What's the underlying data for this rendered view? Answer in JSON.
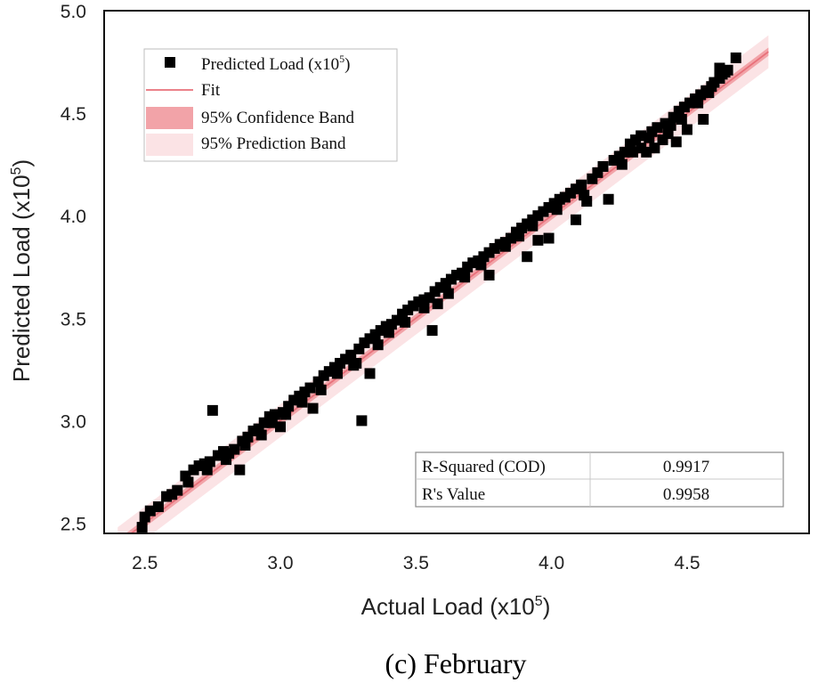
{
  "caption": "(c) February",
  "chart_data": {
    "type": "scatter",
    "xlabel": "Actual Load (x10",
    "ylabel": "Predicted Load (x10",
    "label_superscript": "5",
    "label_close": ")",
    "xlim": [
      2.35,
      4.95
    ],
    "ylim": [
      2.45,
      5.0
    ],
    "xticks": [
      "2.5",
      "3.0",
      "3.5",
      "4.0",
      "4.5"
    ],
    "yticks": [
      "2.5",
      "3.0",
      "3.5",
      "4.0",
      "4.5",
      "5.0"
    ],
    "fit": {
      "slope": 1.0,
      "intercept": 0.0,
      "x_range": [
        2.4,
        4.8
      ]
    },
    "confidence_halfwidth": 0.02,
    "prediction_halfwidth": 0.08,
    "legend": {
      "location": "top-left",
      "items": [
        {
          "label": "Predicted Load (x10",
          "sup": "5",
          "close": ")",
          "kind": "marker"
        },
        {
          "label": "Fit",
          "kind": "line"
        },
        {
          "label": "95% Confidence Band",
          "kind": "confidence"
        },
        {
          "label": "95% Prediction Band",
          "kind": "prediction"
        }
      ]
    },
    "stats_table": {
      "location": "bottom-right",
      "rows": [
        {
          "name": "R-Squared (COD)",
          "value": "0.9917"
        },
        {
          "name": "R's Value",
          "value": "0.9958"
        }
      ]
    },
    "colors": {
      "marker": "#000000",
      "fit": "#e8707a",
      "confidence": "#f2a3a8",
      "prediction": "#fbe3e5"
    },
    "series": [
      {
        "name": "Predicted Load (x10^5)",
        "points": [
          [
            2.49,
            2.48
          ],
          [
            2.5,
            2.53
          ],
          [
            2.52,
            2.56
          ],
          [
            2.55,
            2.58
          ],
          [
            2.58,
            2.63
          ],
          [
            2.62,
            2.66
          ],
          [
            2.65,
            2.73
          ],
          [
            2.68,
            2.76
          ],
          [
            2.7,
            2.78
          ],
          [
            2.72,
            2.79
          ],
          [
            2.74,
            2.8
          ],
          [
            2.75,
            3.05
          ],
          [
            2.77,
            2.83
          ],
          [
            2.79,
            2.85
          ],
          [
            2.81,
            2.84
          ],
          [
            2.83,
            2.86
          ],
          [
            2.85,
            2.76
          ],
          [
            2.86,
            2.9
          ],
          [
            2.88,
            2.92
          ],
          [
            2.9,
            2.95
          ],
          [
            2.92,
            2.96
          ],
          [
            2.94,
            2.99
          ],
          [
            2.96,
            3.02
          ],
          [
            2.98,
            3.03
          ],
          [
            3.0,
            2.97
          ],
          [
            3.01,
            3.04
          ],
          [
            3.03,
            3.07
          ],
          [
            3.05,
            3.1
          ],
          [
            3.07,
            3.12
          ],
          [
            3.09,
            3.14
          ],
          [
            3.11,
            3.16
          ],
          [
            3.12,
            3.06
          ],
          [
            3.14,
            3.19
          ],
          [
            3.16,
            3.22
          ],
          [
            3.18,
            3.24
          ],
          [
            3.2,
            3.26
          ],
          [
            3.22,
            3.28
          ],
          [
            3.24,
            3.3
          ],
          [
            3.26,
            3.32
          ],
          [
            3.27,
            3.27
          ],
          [
            3.29,
            3.35
          ],
          [
            3.3,
            3.0
          ],
          [
            3.31,
            3.38
          ],
          [
            3.33,
            3.23
          ],
          [
            3.33,
            3.4
          ],
          [
            3.35,
            3.42
          ],
          [
            3.37,
            3.44
          ],
          [
            3.39,
            3.46
          ],
          [
            3.41,
            3.47
          ],
          [
            3.43,
            3.49
          ],
          [
            3.45,
            3.52
          ],
          [
            3.47,
            3.54
          ],
          [
            3.49,
            3.56
          ],
          [
            3.51,
            3.58
          ],
          [
            3.53,
            3.59
          ],
          [
            3.55,
            3.6
          ],
          [
            3.56,
            3.44
          ],
          [
            3.57,
            3.63
          ],
          [
            3.59,
            3.65
          ],
          [
            3.61,
            3.67
          ],
          [
            3.63,
            3.69
          ],
          [
            3.65,
            3.71
          ],
          [
            3.67,
            3.72
          ],
          [
            3.69,
            3.75
          ],
          [
            3.71,
            3.77
          ],
          [
            3.73,
            3.78
          ],
          [
            3.75,
            3.8
          ],
          [
            3.77,
            3.71
          ],
          [
            3.77,
            3.82
          ],
          [
            3.79,
            3.84
          ],
          [
            3.81,
            3.86
          ],
          [
            3.83,
            3.87
          ],
          [
            3.85,
            3.89
          ],
          [
            3.87,
            3.92
          ],
          [
            3.89,
            3.94
          ],
          [
            3.91,
            3.8
          ],
          [
            3.91,
            3.96
          ],
          [
            3.93,
            3.98
          ],
          [
            3.95,
            3.88
          ],
          [
            3.95,
            4.0
          ],
          [
            3.97,
            4.02
          ],
          [
            3.99,
            3.89
          ],
          [
            3.99,
            4.04
          ],
          [
            4.01,
            4.06
          ],
          [
            4.03,
            4.08
          ],
          [
            4.05,
            4.09
          ],
          [
            4.07,
            4.11
          ],
          [
            4.09,
            3.98
          ],
          [
            4.09,
            4.13
          ],
          [
            4.11,
            4.15
          ],
          [
            4.13,
            4.07
          ],
          [
            4.15,
            4.18
          ],
          [
            4.17,
            4.21
          ],
          [
            4.19,
            4.24
          ],
          [
            4.21,
            4.08
          ],
          [
            4.23,
            4.27
          ],
          [
            4.25,
            4.29
          ],
          [
            4.27,
            4.31
          ],
          [
            4.29,
            4.35
          ],
          [
            4.31,
            4.37
          ],
          [
            4.33,
            4.39
          ],
          [
            4.35,
            4.31
          ],
          [
            4.37,
            4.41
          ],
          [
            4.38,
            4.33
          ],
          [
            4.39,
            4.43
          ],
          [
            4.41,
            4.37
          ],
          [
            4.42,
            4.45
          ],
          [
            4.43,
            4.4
          ],
          [
            4.45,
            4.48
          ],
          [
            4.46,
            4.36
          ],
          [
            4.47,
            4.51
          ],
          [
            4.49,
            4.53
          ],
          [
            4.5,
            4.42
          ],
          [
            4.51,
            4.55
          ],
          [
            4.53,
            4.57
          ],
          [
            4.55,
            4.59
          ],
          [
            4.56,
            4.47
          ],
          [
            4.57,
            4.61
          ],
          [
            4.59,
            4.63
          ],
          [
            4.6,
            4.65
          ],
          [
            4.62,
            4.67
          ],
          [
            4.63,
            4.69
          ],
          [
            4.64,
            4.7
          ],
          [
            4.65,
            4.71
          ],
          [
            4.62,
            4.72
          ],
          [
            4.68,
            4.77
          ],
          [
            4.58,
            4.6
          ],
          [
            4.54,
            4.55
          ],
          [
            4.48,
            4.47
          ],
          [
            4.44,
            4.44
          ],
          [
            4.36,
            4.38
          ],
          [
            4.33,
            4.33
          ],
          [
            4.3,
            4.31
          ],
          [
            4.26,
            4.25
          ],
          [
            4.12,
            4.1
          ],
          [
            4.02,
            4.03
          ],
          [
            3.93,
            3.95
          ],
          [
            3.88,
            3.9
          ],
          [
            3.83,
            3.85
          ],
          [
            3.74,
            3.76
          ],
          [
            3.68,
            3.7
          ],
          [
            3.62,
            3.62
          ],
          [
            3.58,
            3.57
          ],
          [
            3.53,
            3.55
          ],
          [
            3.46,
            3.48
          ],
          [
            3.4,
            3.43
          ],
          [
            3.36,
            3.37
          ],
          [
            3.28,
            3.28
          ],
          [
            3.21,
            3.23
          ],
          [
            3.15,
            3.15
          ],
          [
            3.08,
            3.09
          ],
          [
            3.02,
            3.03
          ],
          [
            2.97,
            2.99
          ],
          [
            2.93,
            2.93
          ],
          [
            2.87,
            2.88
          ],
          [
            2.8,
            2.81
          ],
          [
            2.73,
            2.76
          ],
          [
            2.66,
            2.7
          ],
          [
            2.6,
            2.64
          ]
        ]
      }
    ]
  }
}
